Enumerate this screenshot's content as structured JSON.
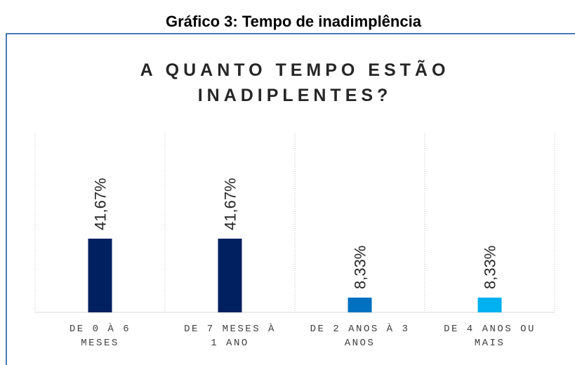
{
  "caption": "Gráfico 3: Tempo de inadimplência",
  "chart_data": {
    "type": "bar",
    "title": "A QUANTO TEMPO ESTÃO INADIPLENTES?",
    "categories": [
      "DE 0 À 6 MESES",
      "DE 7 MESES À 1 ANO",
      "DE 2 ANOS À 3 ANOS",
      "DE 4 ANOS OU MAIS"
    ],
    "values": [
      41.67,
      41.67,
      8.33,
      8.33
    ],
    "value_labels": [
      "41,67%",
      "41,67%",
      "8,33%",
      "8,33%"
    ],
    "colors": [
      "#002060",
      "#002060",
      "#0070c0",
      "#00b0f0"
    ],
    "ylim": [
      0,
      100
    ],
    "grid": true
  }
}
